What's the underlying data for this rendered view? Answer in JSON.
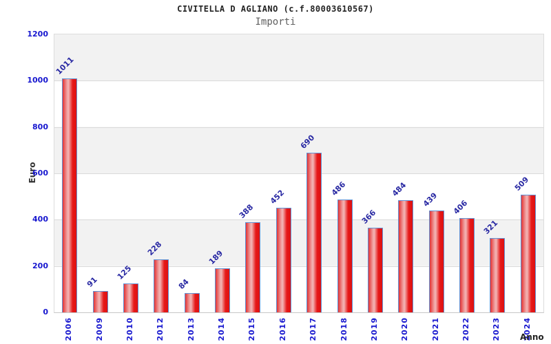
{
  "chart_data": {
    "type": "bar",
    "title": "CIVITELLA D AGLIANO (c.f.80003610567)",
    "subtitle": "Importi",
    "xlabel": "Anno",
    "ylabel": "Euro",
    "categories": [
      "2006",
      "2009",
      "2010",
      "2012",
      "2013",
      "2014",
      "2015",
      "2016",
      "2017",
      "2018",
      "2019",
      "2020",
      "2021",
      "2022",
      "2023",
      "2024"
    ],
    "values": [
      1011,
      91,
      125,
      228,
      84,
      189,
      388,
      452,
      690,
      486,
      366,
      484,
      439,
      406,
      321,
      509
    ],
    "ylim": [
      0,
      1200
    ],
    "ytick_step": 200,
    "yticks": [
      0,
      200,
      400,
      600,
      800,
      1000,
      1200
    ],
    "grid": true,
    "band_fill": "alternating horizontal bands every 200 units",
    "legend_position": "none",
    "colors": {
      "bar_edge": "#5f92d5",
      "bar_fill": "#e61818",
      "bar_highlight": "#f3b5b5",
      "tick_label": "#1717cf",
      "value_label": "#2929a3",
      "band_gray": "#f2f2f2",
      "grid_line": "#d9d9d9",
      "axis_title": "#222222"
    }
  }
}
